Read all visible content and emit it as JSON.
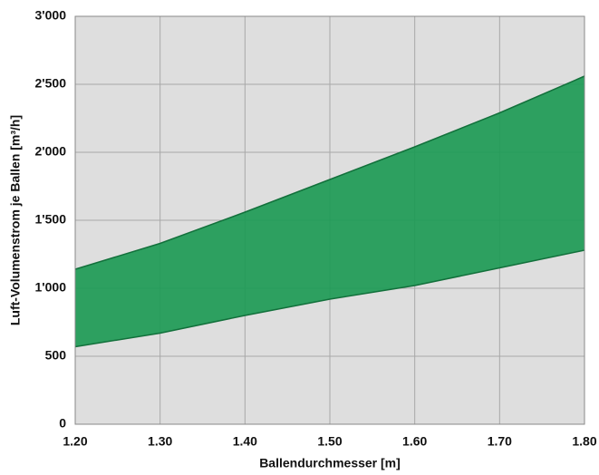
{
  "chart_data": {
    "type": "band",
    "x_label": "Ballendurchmesser [m]",
    "y_label": "Luft-Volumenstrom je Ballen [m³/h]",
    "x": [
      1.2,
      1.3,
      1.4,
      1.5,
      1.6,
      1.7,
      1.8
    ],
    "series": [
      {
        "values": [
          570,
          670,
          800,
          920,
          1020,
          1150,
          1280
        ]
      },
      {
        "values": [
          1140,
          1330,
          1560,
          1800,
          2040,
          2290,
          2560
        ]
      }
    ],
    "color": "#1d9a55",
    "xlim": [
      1.2,
      1.8
    ],
    "xticks": [
      {
        "value": 1.2,
        "label": "1.20"
      },
      {
        "value": 1.3,
        "label": "1.30"
      },
      {
        "value": 1.4,
        "label": "1.40"
      },
      {
        "value": 1.5,
        "label": "1.50"
      },
      {
        "value": 1.6,
        "label": "1.60"
      },
      {
        "value": 1.7,
        "label": "1.70"
      },
      {
        "value": 1.8,
        "label": "1.80"
      }
    ],
    "ylim": [
      0,
      3000
    ],
    "yticks": [
      0,
      500,
      {
        "value": 1000,
        "label": "1'000"
      },
      {
        "value": 1500,
        "label": "1'500"
      },
      {
        "value": 2000,
        "label": "2'000"
      },
      {
        "value": 2500,
        "label": "2'500"
      },
      {
        "value": 3000,
        "label": "3'000"
      }
    ],
    "grid": true
  }
}
